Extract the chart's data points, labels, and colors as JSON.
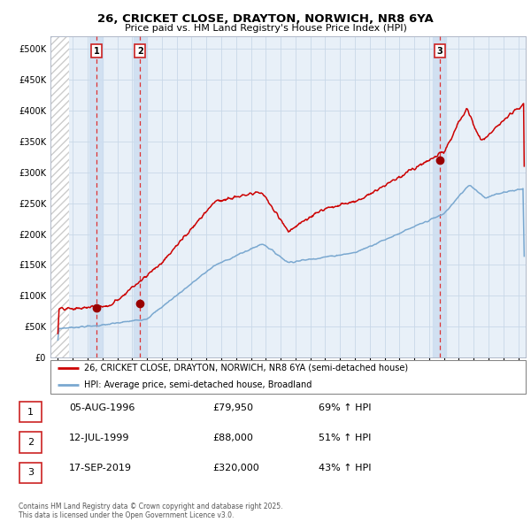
{
  "title": "26, CRICKET CLOSE, DRAYTON, NORWICH, NR8 6YA",
  "subtitle": "Price paid vs. HM Land Registry's House Price Index (HPI)",
  "legend_line1": "26, CRICKET CLOSE, DRAYTON, NORWICH, NR8 6YA (semi-detached house)",
  "legend_line2": "HPI: Average price, semi-detached house, Broadland",
  "footer": "Contains HM Land Registry data © Crown copyright and database right 2025.\nThis data is licensed under the Open Government Licence v3.0.",
  "transactions": [
    {
      "num": 1,
      "date_label": "05-AUG-1996",
      "date_x": 1996.59,
      "price": 79950,
      "price_str": "£79,950",
      "hpi_pct": "69% ↑ HPI"
    },
    {
      "num": 2,
      "date_label": "12-JUL-1999",
      "date_x": 1999.53,
      "price": 88000,
      "price_str": "£88,000",
      "hpi_pct": "51% ↑ HPI"
    },
    {
      "num": 3,
      "date_label": "17-SEP-2019",
      "date_x": 2019.71,
      "price": 320000,
      "price_str": "£320,000",
      "hpi_pct": "43% ↑ HPI"
    }
  ],
  "ylim": [
    0,
    520000
  ],
  "xlim": [
    1993.5,
    2025.5
  ],
  "yticks": [
    0,
    50000,
    100000,
    150000,
    200000,
    250000,
    300000,
    350000,
    400000,
    450000,
    500000
  ],
  "ytick_labels": [
    "£0",
    "£50K",
    "£100K",
    "£150K",
    "£200K",
    "£250K",
    "£300K",
    "£350K",
    "£400K",
    "£450K",
    "£500K"
  ],
  "plot_bg": "#e8f0f8",
  "red_line_color": "#cc0000",
  "blue_line_color": "#7aa8d0",
  "marker_color": "#990000",
  "vline_color": "#dd3333",
  "vline_color3": "#aabbcc",
  "span_color": "#ccddf0",
  "hatch_bg": "#ffffff",
  "hatch_color": "#cccccc",
  "grid_color": "#c8d8e8",
  "title_fontsize": 9.5,
  "subtitle_fontsize": 8,
  "tick_fontsize": 7,
  "legend_fontsize": 7,
  "table_fontsize": 8,
  "footer_fontsize": 5.5
}
